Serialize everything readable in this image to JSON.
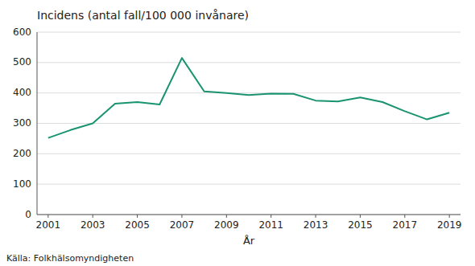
{
  "chart_data": {
    "type": "line",
    "title": "Incidens (antal fall/100 000 invånare)",
    "xlabel": "År",
    "annotations": [
      "Källa: Folkhälsomyndigheten"
    ],
    "x": [
      2001,
      2002,
      2003,
      2004,
      2005,
      2006,
      2007,
      2008,
      2009,
      2010,
      2011,
      2012,
      2013,
      2014,
      2015,
      2016,
      2017,
      2018,
      2019
    ],
    "values": [
      252,
      278,
      300,
      365,
      370,
      362,
      515,
      405,
      400,
      393,
      398,
      397,
      375,
      372,
      385,
      370,
      340,
      313,
      335
    ],
    "color": "#1a9370",
    "xlim": [
      2000.5,
      2019.5
    ],
    "xticks": [
      2001,
      2003,
      2005,
      2007,
      2009,
      2011,
      2013,
      2015,
      2017,
      2019
    ],
    "ylim": [
      0,
      600
    ],
    "yticks": [
      0,
      100,
      200,
      300,
      400,
      500,
      600
    ],
    "grid": true
  }
}
